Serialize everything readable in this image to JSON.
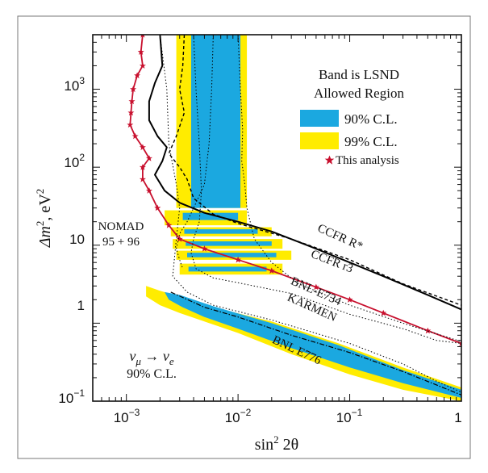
{
  "chart_data": {
    "type": "line",
    "xscale": "log",
    "yscale": "log",
    "xlim": [
      0.0005,
      1
    ],
    "ylim": [
      0.1,
      5000
    ],
    "xlabel_main": "sin",
    "xlabel_sup": "2",
    "xlabel_tail": " 2θ",
    "ylabel_main": "Δm",
    "ylabel_sup": "2",
    "ylabel_tail": ", eV",
    "ylabel_sup2": "2",
    "x_ticks": [
      {
        "value": 0.001,
        "base": "10",
        "exp": "−3"
      },
      {
        "value": 0.01,
        "base": "10",
        "exp": "−2"
      },
      {
        "value": 0.1,
        "base": "10",
        "exp": "−1"
      },
      {
        "value": 1,
        "label": "1"
      }
    ],
    "y_ticks": [
      {
        "value": 0.1,
        "base": "10",
        "exp": "−1"
      },
      {
        "value": 1,
        "label": "1"
      },
      {
        "value": 10,
        "label": "10"
      },
      {
        "value": 100,
        "base": "10",
        "exp": "2"
      },
      {
        "value": 1000,
        "base": "10",
        "exp": "3"
      }
    ],
    "legend": {
      "title_line1": "Band is LSND",
      "title_line2": "Allowed Region",
      "entries": [
        {
          "label": "90% C.L.",
          "color": "#1ba8e0"
        },
        {
          "label": "99% C.L.",
          "color": "#ffec00"
        }
      ],
      "analysis_label": "This analysis",
      "analysis_color": "#c8102e"
    },
    "annotations": {
      "nomad_line1": "NOMAD",
      "nomad_line2": "95 + 96",
      "ccfr_rstar": "CCFR R*",
      "ccfr_r3": "CCFR r3",
      "bnl_e734": "BNL-E734",
      "karmen": "KARMEN",
      "bnl_e776": "BNL E776",
      "osc_from": "ν",
      "osc_from_sub": "μ",
      "osc_arrow": "→",
      "osc_to": "ν",
      "osc_to_sub": "e",
      "osc_cl": "90% C.L."
    },
    "lsnd_99_vertical": {
      "x": [
        0.0028,
        0.012
      ],
      "y": [
        30,
        5000
      ]
    },
    "lsnd_90_vertical": {
      "x": [
        0.0038,
        0.0105
      ],
      "y": [
        30,
        5000
      ]
    },
    "lsnd_99_low": {
      "upper": [
        [
          0.0015,
          3
        ],
        [
          0.002,
          2.6
        ],
        [
          0.003,
          2.2
        ],
        [
          0.006,
          1.6
        ],
        [
          0.02,
          1.05
        ],
        [
          0.08,
          0.55
        ],
        [
          0.3,
          0.27
        ],
        [
          1,
          0.15
        ]
      ],
      "lower": [
        [
          1,
          0.1
        ],
        [
          0.3,
          0.14
        ],
        [
          0.1,
          0.22
        ],
        [
          0.03,
          0.4
        ],
        [
          0.01,
          0.75
        ],
        [
          0.005,
          1.05
        ],
        [
          0.003,
          1.35
        ],
        [
          0.002,
          1.7
        ],
        [
          0.0015,
          2.2
        ]
      ]
    },
    "lsnd_90_low": {
      "upper": [
        [
          0.0022,
          2.5
        ],
        [
          0.003,
          2.3
        ],
        [
          0.006,
          1.65
        ],
        [
          0.02,
          1.0
        ],
        [
          0.08,
          0.52
        ],
        [
          0.3,
          0.25
        ],
        [
          1,
          0.14
        ]
      ],
      "lower": [
        [
          1,
          0.11
        ],
        [
          0.3,
          0.17
        ],
        [
          0.1,
          0.27
        ],
        [
          0.03,
          0.48
        ],
        [
          0.01,
          0.85
        ],
        [
          0.005,
          1.2
        ],
        [
          0.0032,
          1.6
        ],
        [
          0.0024,
          2.0
        ]
      ]
    },
    "islands_99": [
      {
        "y": [
          18,
          28
        ],
        "x": [
          0.0022,
          0.012
        ]
      },
      {
        "y": [
          13,
          17
        ],
        "x": [
          0.0025,
          0.02
        ]
      },
      {
        "y": [
          9,
          12
        ],
        "x": [
          0.0026,
          0.025
        ]
      },
      {
        "y": [
          6.5,
          8.5
        ],
        "x": [
          0.0028,
          0.03
        ]
      },
      {
        "y": [
          4.2,
          5.8
        ],
        "x": [
          0.003,
          0.025
        ]
      }
    ],
    "islands_90": [
      {
        "y": [
          21,
          26
        ],
        "x": [
          0.0032,
          0.01
        ]
      },
      {
        "y": [
          14,
          16
        ],
        "x": [
          0.0033,
          0.015
        ]
      },
      {
        "y": [
          9.8,
          11.2
        ],
        "x": [
          0.0034,
          0.02
        ]
      },
      {
        "y": [
          7,
          8
        ],
        "x": [
          0.0035,
          0.022
        ]
      },
      {
        "y": [
          4.6,
          5.3
        ],
        "x": [
          0.0036,
          0.018
        ]
      }
    ],
    "series": [
      {
        "key": "this_analysis",
        "points": [
          [
            0.0014,
            5000
          ],
          [
            0.00135,
            3000
          ],
          [
            0.0014,
            2000
          ],
          [
            0.00125,
            1500
          ],
          [
            0.00115,
            1000
          ],
          [
            0.00112,
            700
          ],
          [
            0.0011,
            500
          ],
          [
            0.00108,
            350
          ],
          [
            0.0012,
            250
          ],
          [
            0.0014,
            180
          ],
          [
            0.0016,
            130
          ],
          [
            0.0014,
            100
          ],
          [
            0.0014,
            70
          ],
          [
            0.0016,
            50
          ],
          [
            0.0019,
            30
          ],
          [
            0.0024,
            18
          ],
          [
            0.003,
            12
          ],
          [
            0.005,
            9
          ],
          [
            0.01,
            6.5
          ],
          [
            0.02,
            4.7
          ],
          [
            0.05,
            2.9
          ],
          [
            0.1,
            2.0
          ],
          [
            0.2,
            1.35
          ],
          [
            0.5,
            0.8
          ],
          [
            1,
            0.55
          ]
        ]
      },
      {
        "key": "ccfr_rstar",
        "points": [
          [
            0.002,
            5000
          ],
          [
            0.0021,
            2000
          ],
          [
            0.0018,
            1200
          ],
          [
            0.0016,
            700
          ],
          [
            0.0016,
            400
          ],
          [
            0.0019,
            250
          ],
          [
            0.0023,
            180
          ],
          [
            0.0021,
            120
          ],
          [
            0.0018,
            80
          ],
          [
            0.0022,
            50
          ],
          [
            0.003,
            35
          ],
          [
            0.005,
            26
          ],
          [
            0.01,
            20
          ],
          [
            0.02,
            15
          ],
          [
            0.05,
            9
          ],
          [
            0.1,
            6
          ],
          [
            0.2,
            4
          ],
          [
            0.5,
            2.3
          ],
          [
            1,
            1.5
          ]
        ]
      },
      {
        "key": "ccfr_r3",
        "points": [
          [
            0.0033,
            5000
          ],
          [
            0.0032,
            2000
          ],
          [
            0.003,
            1000
          ],
          [
            0.0033,
            500
          ],
          [
            0.0028,
            250
          ],
          [
            0.0024,
            150
          ],
          [
            0.003,
            100
          ],
          [
            0.0035,
            70
          ],
          [
            0.004,
            40
          ],
          [
            0.006,
            25
          ],
          [
            0.01,
            19
          ],
          [
            0.03,
            12
          ],
          [
            0.1,
            6.5
          ],
          [
            0.3,
            3.2
          ],
          [
            1,
            1.7
          ]
        ]
      },
      {
        "key": "nomad",
        "points": [
          [
            0.006,
            5000
          ],
          [
            0.0058,
            1000
          ],
          [
            0.0055,
            200
          ],
          [
            0.005,
            60
          ],
          [
            0.004,
            30
          ],
          [
            0.0035,
            20
          ],
          [
            0.003,
            14
          ],
          [
            0.0028,
            9
          ],
          [
            0.003,
            6.5
          ],
          [
            0.0032,
            5
          ]
        ]
      },
      {
        "key": "karmen",
        "points": [
          [
            0.004,
            5000
          ],
          [
            0.0042,
            1000
          ],
          [
            0.0045,
            200
          ],
          [
            0.0047,
            50
          ],
          [
            0.0045,
            20
          ],
          [
            0.004,
            12
          ],
          [
            0.0038,
            8
          ],
          [
            0.0042,
            5
          ],
          [
            0.006,
            3.8
          ],
          [
            0.01,
            3.3
          ],
          [
            0.03,
            2.4
          ],
          [
            0.1,
            1.3
          ],
          [
            0.3,
            0.85
          ],
          [
            0.6,
            0.6
          ],
          [
            1,
            0.55
          ]
        ]
      },
      {
        "key": "bnl_e776_dotted",
        "points": [
          [
            0.002,
            5000
          ],
          [
            0.0023,
            1000
          ],
          [
            0.0024,
            200
          ],
          [
            0.0028,
            60
          ],
          [
            0.003,
            30
          ],
          [
            0.0028,
            12
          ],
          [
            0.0027,
            7
          ],
          [
            0.0026,
            4
          ],
          [
            0.0035,
            2.5
          ],
          [
            0.006,
            1.7
          ],
          [
            0.02,
            1.1
          ],
          [
            0.1,
            0.55
          ],
          [
            0.3,
            0.3
          ],
          [
            0.6,
            0.18
          ],
          [
            1,
            0.13
          ]
        ]
      },
      {
        "key": "bnl_e734",
        "points": [
          [
            0.01,
            5000
          ],
          [
            0.0105,
            1000
          ],
          [
            0.011,
            300
          ],
          [
            0.0108,
            120
          ],
          [
            0.0115,
            60
          ],
          [
            0.012,
            30
          ],
          [
            0.014,
            12
          ],
          [
            0.02,
            6
          ],
          [
            0.035,
            3.2
          ],
          [
            0.1,
            1.7
          ],
          [
            0.3,
            1.0
          ],
          [
            1,
            0.58
          ]
        ]
      },
      {
        "key": "dashdot",
        "points": [
          [
            0.0025,
            2.5
          ],
          [
            0.005,
            1.6
          ],
          [
            0.01,
            1.2
          ],
          [
            0.03,
            0.7
          ],
          [
            0.1,
            0.42
          ],
          [
            0.3,
            0.24
          ],
          [
            1,
            0.12
          ]
        ]
      }
    ]
  }
}
